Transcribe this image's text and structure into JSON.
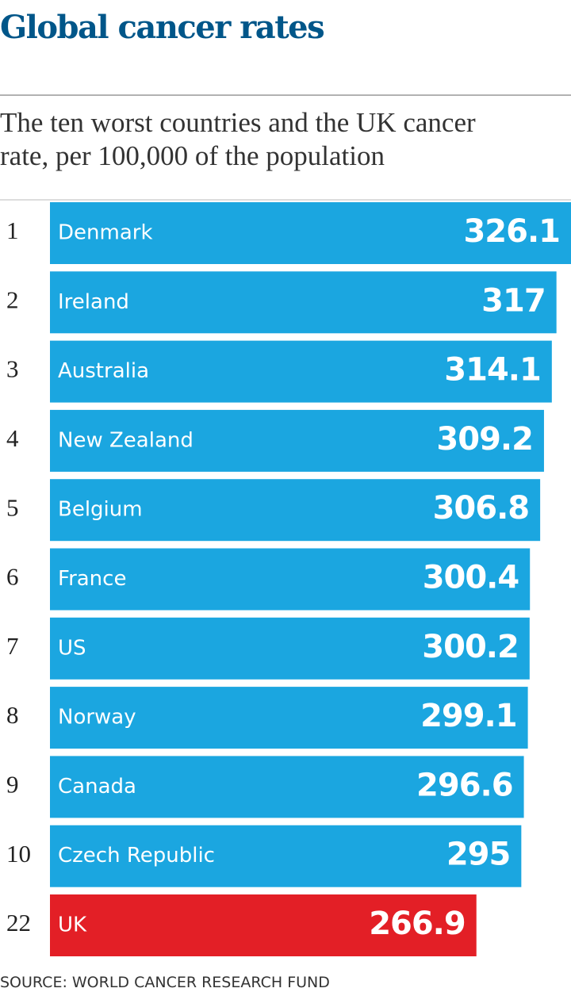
{
  "chart_data": {
    "type": "bar",
    "title": "Global cancer rates",
    "subtitle": [
      "The ten worst countries and the UK cancer",
      "rate, per 100,000 of the population"
    ],
    "ranks": [
      1,
      2,
      3,
      4,
      5,
      6,
      7,
      8,
      9,
      10,
      22
    ],
    "categories": [
      "Denmark",
      "Ireland",
      "Australia",
      "New Zealand",
      "Belgium",
      "France",
      "US",
      "Norway",
      "Canada",
      "Czech Republic",
      "UK"
    ],
    "values": [
      326.1,
      317,
      314.1,
      309.2,
      306.8,
      300.4,
      300.2,
      299.1,
      296.6,
      295,
      266.9
    ],
    "colors": [
      "#1ba6e0",
      "#1ba6e0",
      "#1ba6e0",
      "#1ba6e0",
      "#1ba6e0",
      "#1ba6e0",
      "#1ba6e0",
      "#1ba6e0",
      "#1ba6e0",
      "#1ba6e0",
      "#e31f26"
    ],
    "source": "SOURCE: WORLD CANCER RESEARCH FUND"
  }
}
